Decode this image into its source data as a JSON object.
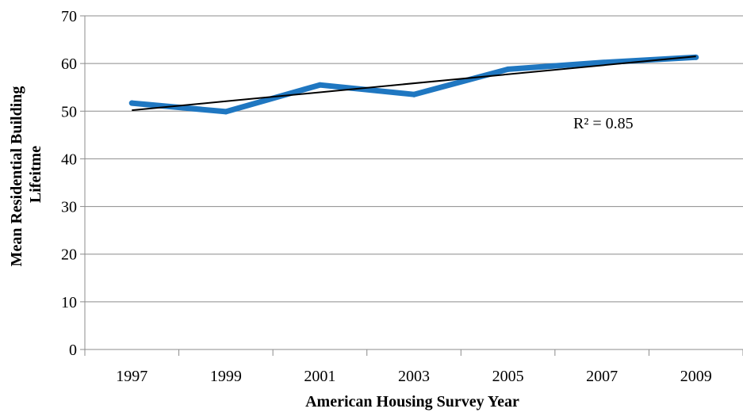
{
  "chart_data": {
    "type": "line",
    "title": "",
    "xlabel": "American Housing Survey Year",
    "ylabel": "Mean Residential Building Lifeitme",
    "categories": [
      "1997",
      "1999",
      "2001",
      "2003",
      "2005",
      "2007",
      "2009"
    ],
    "series": [
      {
        "values": [
          51.7,
          49.9,
          55.5,
          53.5,
          58.8,
          60.2,
          61.3
        ],
        "color": "#1f77c1"
      }
    ],
    "trendline": {
      "type": "linear",
      "start_value": 50.2,
      "end_value": 61.5,
      "color": "#000000",
      "annotation": "R² = 0.85"
    },
    "ylim": [
      0,
      70
    ],
    "yticks": [
      "0",
      "10",
      "20",
      "30",
      "40",
      "50",
      "60",
      "70"
    ],
    "grid": true,
    "legend": "none"
  }
}
